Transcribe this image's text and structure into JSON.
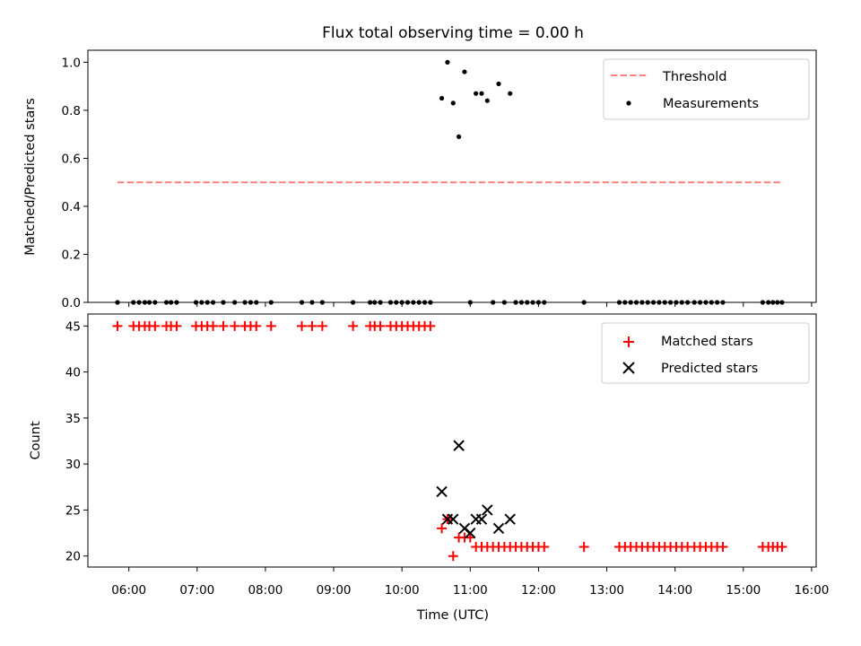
{
  "chart_data": {
    "title": "Flux total observing time = 0.00 h",
    "colors": {
      "threshold": "#ff7f7f",
      "measurements": "#000000",
      "matched": "#ff0000",
      "predicted": "#000000"
    },
    "xaxis": {
      "label": "Time (UTC)",
      "range": [
        "05:24",
        "16:04"
      ],
      "ticks": [
        "06:00",
        "07:00",
        "08:00",
        "09:00",
        "10:00",
        "11:00",
        "12:00",
        "13:00",
        "14:00",
        "15:00",
        "16:00"
      ]
    },
    "panels": [
      {
        "type": "scatter",
        "ylabel": "Matched/Predicted stars",
        "ylim": [
          0,
          1.05
        ],
        "yticks": [
          "0.0",
          "0.2",
          "0.4",
          "0.6",
          "0.8",
          "1.0"
        ],
        "legend": {
          "position": "top-right",
          "entries": [
            "Threshold",
            "Measurements"
          ]
        },
        "threshold": {
          "name": "Threshold",
          "value": 0.5,
          "x_start": "05:50",
          "x_end": "15:35"
        },
        "measurements": {
          "name": "Measurements",
          "points": [
            [
              "05:50",
              0
            ],
            [
              "06:04",
              0
            ],
            [
              "06:09",
              0
            ],
            [
              "06:14",
              0
            ],
            [
              "06:18",
              0
            ],
            [
              "06:23",
              0
            ],
            [
              "06:33",
              0
            ],
            [
              "06:37",
              0
            ],
            [
              "06:42",
              0
            ],
            [
              "06:59",
              0
            ],
            [
              "07:04",
              0
            ],
            [
              "07:09",
              0
            ],
            [
              "07:14",
              0
            ],
            [
              "07:23",
              0
            ],
            [
              "07:33",
              0
            ],
            [
              "07:42",
              0
            ],
            [
              "07:47",
              0
            ],
            [
              "07:52",
              0
            ],
            [
              "08:05",
              0
            ],
            [
              "08:32",
              0
            ],
            [
              "08:41",
              0
            ],
            [
              "08:50",
              0
            ],
            [
              "09:17",
              0
            ],
            [
              "09:32",
              0
            ],
            [
              "09:36",
              0
            ],
            [
              "09:41",
              0
            ],
            [
              "09:50",
              0
            ],
            [
              "09:55",
              0
            ],
            [
              "10:00",
              0
            ],
            [
              "10:05",
              0
            ],
            [
              "10:10",
              0
            ],
            [
              "10:15",
              0
            ],
            [
              "10:20",
              0
            ],
            [
              "10:25",
              0
            ],
            [
              "10:35",
              0.85
            ],
            [
              "10:40",
              1.0
            ],
            [
              "10:45",
              0.83
            ],
            [
              "10:50",
              0.69
            ],
            [
              "10:55",
              0.96
            ],
            [
              "11:00",
              0
            ],
            [
              "11:05",
              0.87
            ],
            [
              "11:10",
              0.87
            ],
            [
              "11:15",
              0.84
            ],
            [
              "11:20",
              0
            ],
            [
              "11:25",
              0.91
            ],
            [
              "11:30",
              0
            ],
            [
              "11:35",
              0.87
            ],
            [
              "11:40",
              0
            ],
            [
              "11:45",
              0
            ],
            [
              "11:50",
              0
            ],
            [
              "11:55",
              0
            ],
            [
              "12:00",
              0
            ],
            [
              "12:05",
              0
            ],
            [
              "12:40",
              0
            ],
            [
              "13:11",
              0
            ],
            [
              "13:16",
              0
            ],
            [
              "13:21",
              0
            ],
            [
              "13:26",
              0
            ],
            [
              "13:31",
              0
            ],
            [
              "13:36",
              0
            ],
            [
              "13:41",
              0
            ],
            [
              "13:46",
              0
            ],
            [
              "13:51",
              0
            ],
            [
              "13:56",
              0
            ],
            [
              "14:01",
              0
            ],
            [
              "14:06",
              0
            ],
            [
              "14:11",
              0
            ],
            [
              "14:17",
              0
            ],
            [
              "14:22",
              0
            ],
            [
              "14:27",
              0
            ],
            [
              "14:32",
              0
            ],
            [
              "14:37",
              0
            ],
            [
              "14:42",
              0
            ],
            [
              "15:17",
              0
            ],
            [
              "15:22",
              0
            ],
            [
              "15:26",
              0
            ],
            [
              "15:30",
              0
            ],
            [
              "15:34",
              0
            ]
          ]
        }
      },
      {
        "type": "scatter",
        "ylabel": "Count",
        "ylim": [
          18.8,
          46.3
        ],
        "yticks": [
          "20",
          "25",
          "30",
          "35",
          "40",
          "45"
        ],
        "legend": {
          "position": "top-right",
          "entries": [
            "Matched stars",
            "Predicted stars"
          ]
        },
        "matched": {
          "name": "Matched stars",
          "points": [
            [
              "05:50",
              45
            ],
            [
              "06:04",
              45
            ],
            [
              "06:09",
              45
            ],
            [
              "06:14",
              45
            ],
            [
              "06:18",
              45
            ],
            [
              "06:23",
              45
            ],
            [
              "06:33",
              45
            ],
            [
              "06:37",
              45
            ],
            [
              "06:42",
              45
            ],
            [
              "06:59",
              45
            ],
            [
              "07:04",
              45
            ],
            [
              "07:09",
              45
            ],
            [
              "07:14",
              45
            ],
            [
              "07:23",
              45
            ],
            [
              "07:33",
              45
            ],
            [
              "07:42",
              45
            ],
            [
              "07:47",
              45
            ],
            [
              "07:52",
              45
            ],
            [
              "08:05",
              45
            ],
            [
              "08:32",
              45
            ],
            [
              "08:41",
              45
            ],
            [
              "08:50",
              45
            ],
            [
              "09:17",
              45
            ],
            [
              "09:32",
              45
            ],
            [
              "09:36",
              45
            ],
            [
              "09:41",
              45
            ],
            [
              "09:50",
              45
            ],
            [
              "09:55",
              45
            ],
            [
              "10:00",
              45
            ],
            [
              "10:05",
              45
            ],
            [
              "10:10",
              45
            ],
            [
              "10:15",
              45
            ],
            [
              "10:20",
              45
            ],
            [
              "10:25",
              45
            ],
            [
              "10:35",
              23
            ],
            [
              "10:40",
              24
            ],
            [
              "10:45",
              20
            ],
            [
              "10:50",
              22
            ],
            [
              "10:55",
              22
            ],
            [
              "11:00",
              22
            ],
            [
              "11:05",
              21
            ],
            [
              "11:10",
              21
            ],
            [
              "11:15",
              21
            ],
            [
              "11:20",
              21
            ],
            [
              "11:25",
              21
            ],
            [
              "11:30",
              21
            ],
            [
              "11:35",
              21
            ],
            [
              "11:40",
              21
            ],
            [
              "11:45",
              21
            ],
            [
              "11:50",
              21
            ],
            [
              "11:55",
              21
            ],
            [
              "12:00",
              21
            ],
            [
              "12:05",
              21
            ],
            [
              "12:40",
              21
            ],
            [
              "13:11",
              21
            ],
            [
              "13:16",
              21
            ],
            [
              "13:21",
              21
            ],
            [
              "13:26",
              21
            ],
            [
              "13:31",
              21
            ],
            [
              "13:36",
              21
            ],
            [
              "13:41",
              21
            ],
            [
              "13:46",
              21
            ],
            [
              "13:51",
              21
            ],
            [
              "13:56",
              21
            ],
            [
              "14:01",
              21
            ],
            [
              "14:06",
              21
            ],
            [
              "14:11",
              21
            ],
            [
              "14:17",
              21
            ],
            [
              "14:22",
              21
            ],
            [
              "14:27",
              21
            ],
            [
              "14:32",
              21
            ],
            [
              "14:37",
              21
            ],
            [
              "14:42",
              21
            ],
            [
              "15:17",
              21
            ],
            [
              "15:22",
              21
            ],
            [
              "15:26",
              21
            ],
            [
              "15:30",
              21
            ],
            [
              "15:34",
              21
            ]
          ]
        },
        "predicted": {
          "name": "Predicted stars",
          "points": [
            [
              "10:35",
              27
            ],
            [
              "10:40",
              24
            ],
            [
              "10:45",
              24
            ],
            [
              "10:50",
              32
            ],
            [
              "10:55",
              23
            ],
            [
              "11:00",
              22.5
            ],
            [
              "11:05",
              24
            ],
            [
              "11:10",
              24
            ],
            [
              "11:15",
              25
            ],
            [
              "11:25",
              23
            ],
            [
              "11:35",
              24
            ]
          ]
        }
      }
    ]
  }
}
